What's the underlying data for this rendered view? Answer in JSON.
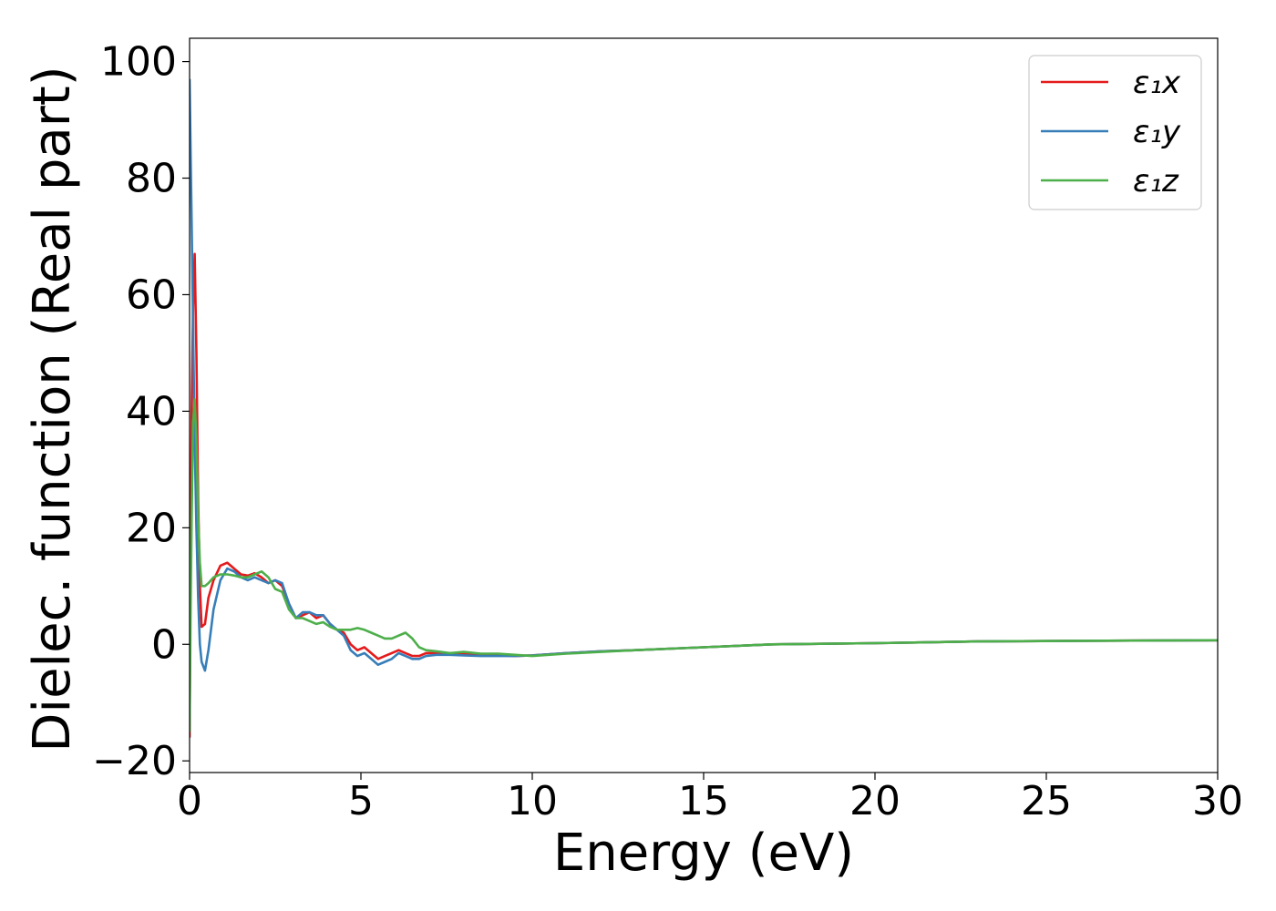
{
  "chart_data": {
    "type": "line",
    "title": "",
    "xlabel": "Energy (eV)",
    "ylabel": "Dielec. function (Real part)",
    "xlim": [
      0,
      30
    ],
    "ylim": [
      -22,
      104
    ],
    "xticks": [
      0,
      5,
      10,
      15,
      20,
      25,
      30
    ],
    "yticks": [
      -20,
      0,
      20,
      40,
      60,
      80,
      100
    ],
    "ytick_labels": [
      "−20",
      "0",
      "20",
      "40",
      "60",
      "80",
      "100"
    ],
    "grid": false,
    "legend_position": "top-right",
    "series": [
      {
        "name": "ε₁x",
        "color": "#e41a1c",
        "x": [
          0.0,
          0.03,
          0.06,
          0.1,
          0.15,
          0.2,
          0.25,
          0.3,
          0.35,
          0.45,
          0.55,
          0.7,
          0.9,
          1.1,
          1.3,
          1.5,
          1.7,
          1.9,
          2.1,
          2.3,
          2.5,
          2.7,
          2.9,
          3.1,
          3.3,
          3.5,
          3.7,
          3.9,
          4.1,
          4.3,
          4.5,
          4.7,
          4.9,
          5.1,
          5.3,
          5.5,
          5.7,
          5.9,
          6.1,
          6.3,
          6.5,
          6.7,
          6.9,
          7.2,
          7.6,
          8.0,
          8.5,
          9.0,
          9.5,
          10,
          11,
          12,
          13,
          15,
          17,
          20,
          23,
          26,
          30
        ],
        "y": [
          -16,
          15,
          40,
          58,
          67,
          50,
          25,
          10,
          3,
          3.5,
          8,
          11,
          13.5,
          14,
          13,
          12,
          11.8,
          12.2,
          11.5,
          10.5,
          11,
          10,
          7,
          4.5,
          5,
          5.5,
          4.5,
          5,
          3.5,
          2.5,
          2,
          0,
          -1,
          -0.5,
          -1.5,
          -2.5,
          -2,
          -1.5,
          -1,
          -1.5,
          -2,
          -2,
          -1.5,
          -1.5,
          -1.5,
          -1.7,
          -1.8,
          -1.9,
          -2,
          -1.9,
          -1.5,
          -1.2,
          -1,
          -0.5,
          0,
          0.2,
          0.5,
          0.6,
          0.7
        ]
      },
      {
        "name": "ε₁y",
        "color": "#377eb8",
        "x": [
          0.0,
          0.03,
          0.06,
          0.1,
          0.15,
          0.2,
          0.25,
          0.3,
          0.35,
          0.45,
          0.55,
          0.7,
          0.9,
          1.1,
          1.3,
          1.5,
          1.7,
          1.9,
          2.1,
          2.3,
          2.5,
          2.7,
          2.9,
          3.1,
          3.3,
          3.5,
          3.7,
          3.9,
          4.1,
          4.3,
          4.5,
          4.7,
          4.9,
          5.1,
          5.3,
          5.5,
          5.7,
          5.9,
          6.1,
          6.3,
          6.5,
          6.7,
          6.9,
          7.2,
          7.6,
          8.0,
          8.5,
          9.0,
          9.5,
          10,
          11,
          12,
          13,
          15,
          17,
          20,
          23,
          26,
          30
        ],
        "y": [
          97,
          85,
          72,
          55,
          35,
          20,
          8,
          0,
          -3,
          -4.5,
          -1,
          6,
          11,
          13,
          12.5,
          11.5,
          11,
          11.5,
          11,
          10.5,
          11,
          10.5,
          7,
          4.5,
          5.5,
          5.5,
          5,
          5,
          3.5,
          2.5,
          1.5,
          -1,
          -2,
          -1.5,
          -2.5,
          -3.5,
          -3,
          -2.5,
          -1.5,
          -2,
          -2.5,
          -2.5,
          -2,
          -1.8,
          -1.8,
          -1.9,
          -2,
          -2,
          -2,
          -1.9,
          -1.5,
          -1.2,
          -1,
          -0.5,
          0,
          0.2,
          0.5,
          0.6,
          0.7
        ]
      },
      {
        "name": "ε₁z",
        "color": "#4daf4a",
        "x": [
          0.0,
          0.03,
          0.06,
          0.1,
          0.15,
          0.2,
          0.25,
          0.3,
          0.35,
          0.45,
          0.55,
          0.7,
          0.9,
          1.1,
          1.3,
          1.5,
          1.7,
          1.9,
          2.1,
          2.3,
          2.5,
          2.7,
          2.9,
          3.1,
          3.3,
          3.5,
          3.7,
          3.9,
          4.1,
          4.3,
          4.5,
          4.7,
          4.9,
          5.1,
          5.3,
          5.5,
          5.7,
          5.9,
          6.1,
          6.3,
          6.5,
          6.7,
          6.9,
          7.2,
          7.6,
          8.0,
          8.5,
          9.0,
          9.5,
          10,
          11,
          12,
          13,
          15,
          17,
          20,
          23,
          26,
          30
        ],
        "y": [
          -15,
          5,
          22,
          38,
          42,
          35,
          22,
          14,
          10,
          10,
          10.5,
          11.5,
          12,
          12,
          11.8,
          11.5,
          11.5,
          12,
          12.5,
          11.5,
          9.5,
          9,
          6,
          4.5,
          4.5,
          4,
          3.5,
          3.8,
          3,
          2.5,
          2.5,
          2.5,
          2.8,
          2.5,
          2,
          1.5,
          1,
          1,
          1.5,
          2,
          1,
          -0.5,
          -1,
          -1.2,
          -1.5,
          -1.3,
          -1.6,
          -1.6,
          -1.8,
          -2,
          -1.6,
          -1.3,
          -1,
          -0.5,
          0,
          0.2,
          0.5,
          0.6,
          0.7
        ]
      }
    ]
  }
}
